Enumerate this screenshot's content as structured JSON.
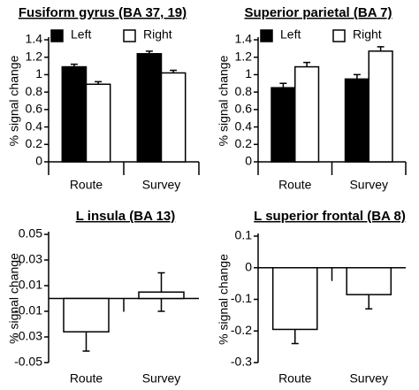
{
  "chart_data": [
    {
      "type": "bar",
      "title": "Fusiform gyrus (BA 37, 19)",
      "y_label": "% signal change",
      "categories": [
        "Route",
        "Survey"
      ],
      "series": [
        {
          "name": "Left",
          "color": "#000000",
          "values": [
            1.09,
            1.24
          ],
          "errors": [
            0.03,
            0.03
          ]
        },
        {
          "name": "Right",
          "color": "#ffffff",
          "values": [
            0.89,
            1.02
          ],
          "errors": [
            0.03,
            0.03
          ]
        }
      ],
      "ylim": [
        0,
        1.4
      ],
      "yticks": [
        0,
        0.2,
        0.4,
        0.6,
        0.8,
        1,
        1.2,
        1.4
      ],
      "legend": "top-left"
    },
    {
      "type": "bar",
      "title": "Superior parietal  (BA 7)",
      "y_label": "% signal change",
      "categories": [
        "Route",
        "Survey"
      ],
      "series": [
        {
          "name": "Left",
          "color": "#000000",
          "values": [
            0.85,
            0.95
          ],
          "errors": [
            0.05,
            0.05
          ]
        },
        {
          "name": "Right",
          "color": "#ffffff",
          "values": [
            1.09,
            1.27
          ],
          "errors": [
            0.05,
            0.05
          ]
        }
      ],
      "ylim": [
        0,
        1.4
      ],
      "yticks": [
        0,
        0.2,
        0.4,
        0.6,
        0.8,
        1,
        1.2,
        1.4
      ],
      "legend": "top-left"
    },
    {
      "type": "bar",
      "title": "L insula (BA 13)",
      "y_label": "% signal change",
      "categories": [
        "Route",
        "Survey"
      ],
      "values": [
        -0.026,
        0.005
      ],
      "errors": [
        0.015,
        0.015
      ],
      "color": "#ffffff",
      "ylim": [
        -0.05,
        0.05
      ],
      "yticks": [
        -0.05,
        -0.03,
        -0.01,
        0.01,
        0.03,
        0.05
      ]
    },
    {
      "type": "bar",
      "title": "L superior frontal (BA 8)",
      "y_label": "% signal change",
      "categories": [
        "Route",
        "Survey"
      ],
      "values": [
        -0.195,
        -0.085
      ],
      "errors": [
        0.045,
        0.045
      ],
      "color": "#ffffff",
      "ylim": [
        -0.3,
        0.1
      ],
      "yticks": [
        -0.3,
        -0.2,
        -0.1,
        0,
        0.1
      ]
    }
  ]
}
